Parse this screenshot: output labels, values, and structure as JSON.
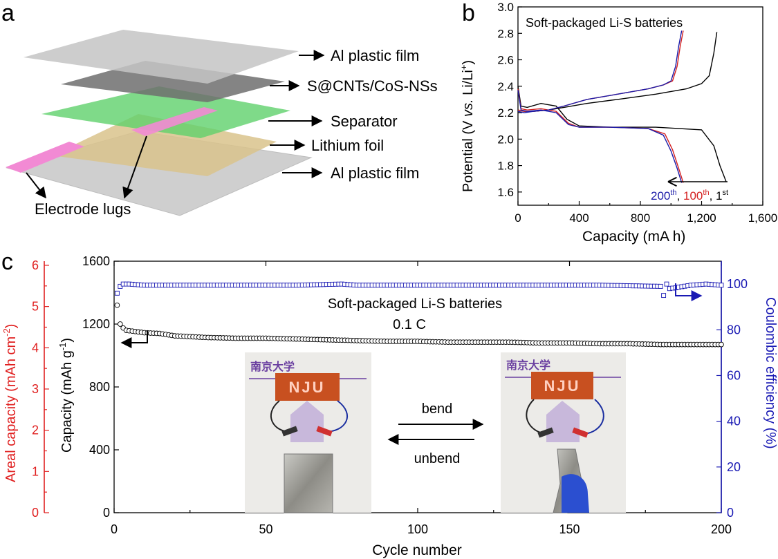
{
  "panels": {
    "a": {
      "letter": "a",
      "labels": {
        "top_film": "Al plastic film",
        "cathode": "S@CNTs/CoS-NSs",
        "separator": "Separator",
        "lithium": "Lithium foil",
        "bottom_film": "Al plastic film",
        "lugs": "Electrode lugs"
      }
    },
    "b": {
      "letter": "b",
      "title": "Soft-packaged Li-S batteries",
      "xlabel": "Capacity (mA h)",
      "ylabel_parts": {
        "p1": "Potential (V ",
        "p2": "vs.",
        "p3": " Li/Li",
        "p4": "+",
        "p5": ")"
      },
      "xticks": [
        "0",
        "400",
        "800",
        "1,200",
        "1,600"
      ],
      "yticks": [
        "1.6",
        "1.8",
        "2.0",
        "2.2",
        "2.4",
        "2.6",
        "2.8",
        "3.0"
      ],
      "annotation": {
        "c200": "200",
        "sup200": "th",
        "sep1": ", ",
        "c100": "100",
        "sup100": "th",
        "sep2": ", ",
        "c1": "1",
        "sup1": "st"
      }
    },
    "c": {
      "letter": "c",
      "title": "Soft-packaged Li-S batteries",
      "rate": "0.1 C",
      "xlabel": "Cycle number",
      "ylabel_left": "Capacity (mAh g",
      "ylabel_left_sup": "-1",
      "ylabel_left_end": ")",
      "ylabel_areal": "Areal capacity (mAh cm",
      "ylabel_areal_sup": "-2",
      "ylabel_areal_end": ")",
      "ylabel_right": "Coulombic efficiency (%)",
      "xticks": [
        "0",
        "50",
        "100",
        "150",
        "200"
      ],
      "yticks_left": [
        "0",
        "400",
        "800",
        "1200",
        "1600"
      ],
      "yticks_areal": [
        "0",
        "1",
        "2",
        "3",
        "4",
        "5",
        "6"
      ],
      "yticks_right": [
        "0",
        "20",
        "40",
        "60",
        "80",
        "100"
      ],
      "photo_left": {
        "banner": "南京大学",
        "sign": "NJU"
      },
      "photo_right": {
        "banner": "南京大学",
        "sign": "NJU"
      },
      "bend_label": "bend",
      "unbend_label": "unbend"
    }
  },
  "colors": {
    "first": "#000000",
    "hundredth": "#d42020",
    "twohundredth": "#1a1aa8",
    "areal_axis": "#e02020",
    "ce_axis": "#1a1ab4",
    "capacity_marker": "#000000"
  },
  "chart_data": [
    {
      "type": "line",
      "title": "Soft-packaged Li-S batteries",
      "xlabel": "Capacity (mA h)",
      "ylabel": "Potential (V vs. Li/Li+)",
      "xlim": [
        0,
        1600
      ],
      "ylim": [
        1.5,
        3.0
      ],
      "grid": false,
      "series": [
        {
          "name": "1st",
          "curve": "discharge",
          "x": [
            0,
            20,
            60,
            150,
            250,
            320,
            400,
            600,
            900,
            1200,
            1280,
            1320,
            1360
          ],
          "y": [
            2.4,
            2.25,
            2.24,
            2.27,
            2.25,
            2.15,
            2.1,
            2.09,
            2.09,
            2.07,
            1.95,
            1.8,
            1.68
          ]
        },
        {
          "name": "1st",
          "curve": "charge",
          "x": [
            0,
            40,
            100,
            200,
            300,
            450,
            650,
            900,
            1100,
            1200,
            1250,
            1280,
            1300
          ],
          "y": [
            2.22,
            2.21,
            2.21,
            2.22,
            2.24,
            2.27,
            2.3,
            2.34,
            2.38,
            2.42,
            2.48,
            2.65,
            2.81
          ]
        },
        {
          "name": "100th",
          "curve": "discharge",
          "x": [
            0,
            20,
            60,
            150,
            250,
            330,
            400,
            600,
            850,
            960,
            1010,
            1050,
            1080
          ],
          "y": [
            2.38,
            2.23,
            2.22,
            2.23,
            2.21,
            2.12,
            2.09,
            2.09,
            2.08,
            2.04,
            1.92,
            1.78,
            1.67
          ]
        },
        {
          "name": "100th",
          "curve": "charge",
          "x": [
            0,
            40,
            100,
            200,
            300,
            450,
            650,
            850,
            950,
            1010,
            1040,
            1060,
            1080
          ],
          "y": [
            2.22,
            2.21,
            2.21,
            2.22,
            2.25,
            2.3,
            2.34,
            2.38,
            2.41,
            2.44,
            2.55,
            2.7,
            2.82
          ]
        },
        {
          "name": "200th",
          "curve": "discharge",
          "x": [
            0,
            20,
            60,
            150,
            250,
            330,
            400,
            600,
            850,
            950,
            1000,
            1040,
            1070
          ],
          "y": [
            2.37,
            2.22,
            2.21,
            2.22,
            2.2,
            2.11,
            2.09,
            2.09,
            2.08,
            2.03,
            1.91,
            1.78,
            1.67
          ]
        },
        {
          "name": "200th",
          "curve": "charge",
          "x": [
            0,
            40,
            100,
            200,
            300,
            450,
            650,
            850,
            950,
            1000,
            1030,
            1050,
            1070
          ],
          "y": [
            2.21,
            2.2,
            2.21,
            2.22,
            2.25,
            2.3,
            2.34,
            2.38,
            2.41,
            2.44,
            2.55,
            2.7,
            2.82
          ]
        }
      ]
    },
    {
      "type": "scatter",
      "title": "Soft-packaged Li-S batteries",
      "xlabel": "Cycle number",
      "ylabel": "Capacity (mAh g-1)",
      "y2label": "Coulombic efficiency (%)",
      "y3label": "Areal capacity (mAh cm-2)",
      "xlim": [
        0,
        200
      ],
      "ylim": [
        0,
        1600
      ],
      "y2lim": [
        0,
        110
      ],
      "y3lim": [
        0,
        6.1
      ],
      "series": [
        {
          "name": "Capacity",
          "axis": "left",
          "x": [
            1,
            2,
            3,
            4,
            6,
            8,
            10,
            15,
            20,
            30,
            40,
            50,
            60,
            70,
            80,
            90,
            100,
            110,
            120,
            130,
            140,
            150,
            160,
            170,
            180,
            190,
            200
          ],
          "y": [
            1320,
            1200,
            1175,
            1160,
            1155,
            1150,
            1145,
            1140,
            1125,
            1115,
            1110,
            1110,
            1105,
            1100,
            1095,
            1090,
            1090,
            1085,
            1085,
            1085,
            1080,
            1080,
            1075,
            1075,
            1070,
            1070,
            1070
          ]
        },
        {
          "name": "Coulombic efficiency",
          "axis": "right",
          "x": [
            1,
            2,
            3,
            5,
            10,
            20,
            40,
            60,
            75,
            80,
            100,
            120,
            140,
            160,
            180,
            181,
            182,
            183,
            190,
            195,
            200
          ],
          "y": [
            96,
            99,
            100,
            100,
            99.5,
            99.5,
            99.5,
            99.5,
            100,
            99.5,
            99.5,
            99.5,
            99.5,
            99.5,
            99,
            95,
            100,
            98,
            99.5,
            100,
            99.5
          ]
        }
      ]
    }
  ]
}
